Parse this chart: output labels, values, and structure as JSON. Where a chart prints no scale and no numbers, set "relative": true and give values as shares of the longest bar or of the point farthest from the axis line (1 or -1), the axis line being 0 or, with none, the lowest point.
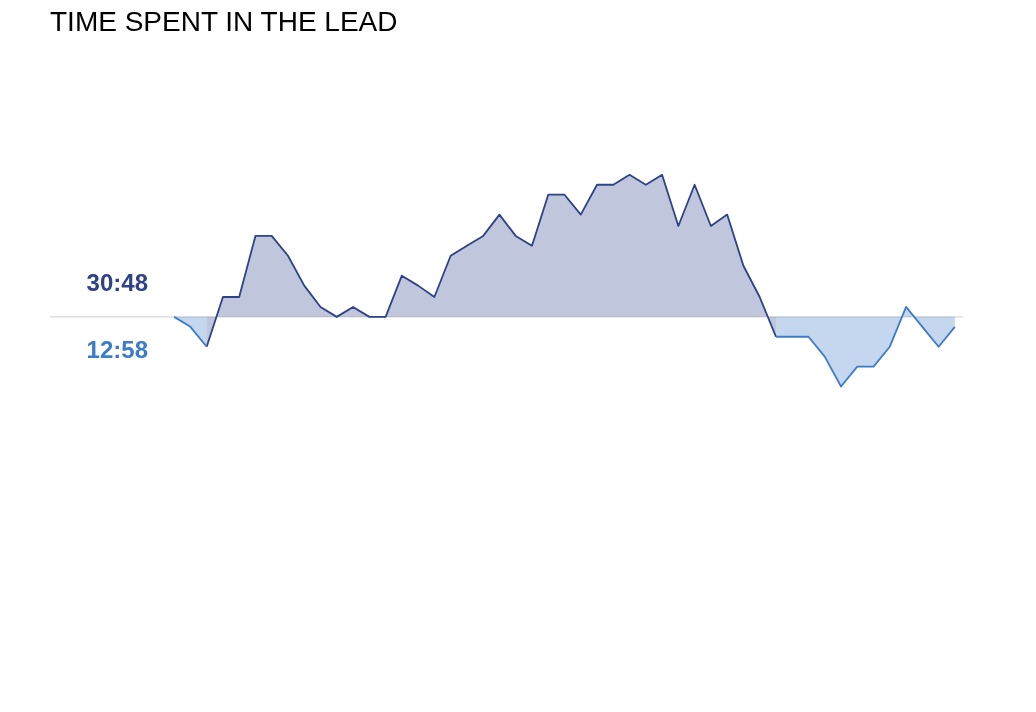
{
  "chart_data": {
    "type": "area",
    "title": "TIME SPENT IN THE LEAD",
    "relative": true,
    "categories": [
      null,
      null,
      null,
      null,
      null,
      null,
      null,
      null,
      null,
      null,
      null,
      null,
      null,
      null,
      null,
      null,
      null,
      null,
      null,
      null,
      null,
      null,
      null,
      null,
      null,
      null,
      null,
      null,
      null,
      null,
      null,
      null,
      null,
      null,
      null,
      null,
      null,
      null,
      null,
      null,
      null,
      null,
      null,
      null,
      null,
      null,
      null,
      null,
      null
    ],
    "series": [
      {
        "name": "30:48",
        "color": "#2e4287",
        "values": [
          null,
          null,
          -0.21,
          0.14,
          0.14,
          0.57,
          0.57,
          0.43,
          0.22,
          0.07,
          0,
          0.07,
          0,
          0,
          0.29,
          0.22,
          0.14,
          0.43,
          0.5,
          0.57,
          0.72,
          0.57,
          0.5,
          0.86,
          0.86,
          0.72,
          0.93,
          0.93,
          1,
          0.93,
          1,
          0.64,
          0.93,
          0.64,
          0.72,
          0.36,
          0.14,
          -0.14,
          null,
          null,
          null,
          null,
          null,
          null,
          null,
          null,
          null,
          null,
          null
        ]
      },
      {
        "name": "12:58",
        "color": "#3d7cc9",
        "values": [
          0,
          -0.07,
          -0.21,
          null,
          null,
          null,
          null,
          null,
          null,
          null,
          null,
          null,
          null,
          null,
          null,
          null,
          null,
          null,
          null,
          null,
          null,
          null,
          null,
          null,
          null,
          null,
          null,
          null,
          null,
          null,
          null,
          null,
          null,
          null,
          null,
          null,
          null,
          null,
          null,
          null,
          null,
          null,
          null,
          null,
          null,
          null,
          null,
          null,
          null
        ]
      },
      {
        "color": "#3d7cc9",
        "values": [
          null,
          null,
          null,
          null,
          null,
          null,
          null,
          null,
          null,
          null,
          null,
          null,
          null,
          null,
          null,
          null,
          null,
          null,
          null,
          null,
          null,
          null,
          null,
          null,
          null,
          null,
          null,
          null,
          null,
          null,
          null,
          null,
          null,
          null,
          null,
          null,
          null,
          -0.14,
          -0.14,
          -0.14,
          -0.28,
          -0.49,
          -0.35,
          -0.35,
          -0.21,
          0.07,
          -0.07,
          -0.21,
          -0.07
        ]
      }
    ]
  }
}
